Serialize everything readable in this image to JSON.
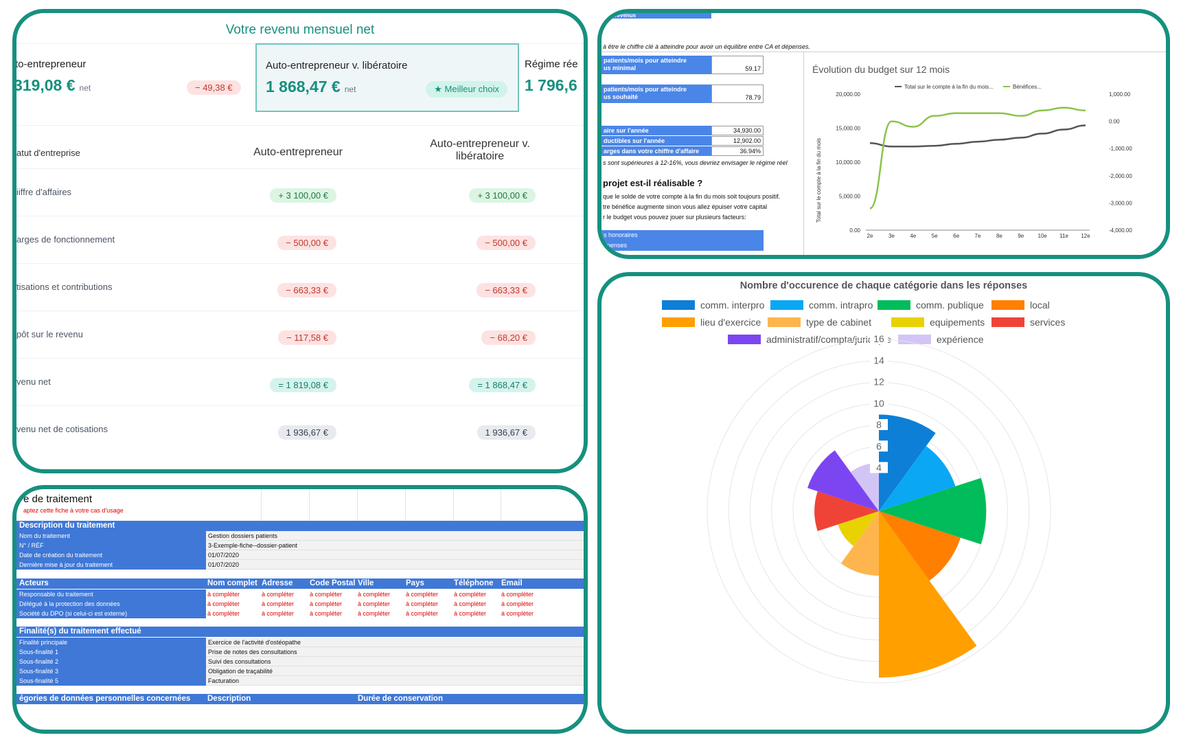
{
  "income": {
    "title": "Votre revenu mensuel net",
    "cards": [
      {
        "name": "to-entrepreneur",
        "amount": "319,08 €",
        "net": "net",
        "delta": "− 49,38 €"
      },
      {
        "name": "Auto-entrepreneur v. libératoire",
        "amount": "1 868,47 €",
        "net": "net",
        "badge": "★ Meilleur choix"
      },
      {
        "name": "Régime rée",
        "amount": "1 796,6"
      }
    ],
    "columns": [
      "atut d'entreprise",
      "Auto-entrepreneur",
      "Auto-entrepreneur v. libératoire"
    ],
    "rows": [
      {
        "label": "iiffre d'affaires",
        "v1": "+ 3 100,00 €",
        "v2": "+ 3 100,00 €"
      },
      {
        "label": "arges de fonctionnement",
        "v1": "− 500,00 €",
        "v2": "− 500,00 €"
      },
      {
        "label": "tisations et contributions",
        "v1": "− 663,33 €",
        "v2": "− 663,33 €"
      },
      {
        "label": "pôt sur le revenu",
        "v1": "− 117,58 €",
        "v2": "− 68,20 €"
      },
      {
        "label": "venu net",
        "v1": "= 1 819,08 €",
        "v2": "= 1 868,47 €"
      },
      {
        "label": "venu net de cotisations",
        "v1": "1 936,67 €",
        "v2": "1 936,67 €"
      }
    ]
  },
  "budget": {
    "top_cut": "t de revenus",
    "note": "à être le chiffre clé à atteindre pour avoir un équilibre entre CA et dépenses.",
    "cells": [
      {
        "label": "patients/mois pour atteindre",
        "label2": "us minimal",
        "value": "59.17"
      },
      {
        "label": "patients/mois pour atteindre",
        "label2": "us souhaité",
        "value": "78.79"
      }
    ],
    "stats": [
      {
        "label": "aire sur l'année",
        "value": "34,930.00"
      },
      {
        "label": "ductibles sur l'année",
        "value": "12,902.00"
      },
      {
        "label": "arges dans votre chiffre d'affaire",
        "value": "36.94%"
      }
    ],
    "warning": "s sont supérieures à 12-16%, vous devriez envisager le régime réel",
    "question": "projet est-il réalisable ?",
    "lines": [
      "que le solde de votre compte à la fin du mois soit toujours positif.",
      "tre bénéfice augmente sinon vous allez épuiser votre capital",
      "r le budget vous pouvez jouer sur plusieurs facteurs:"
    ],
    "blue_items": [
      "s honoraires",
      "épenses"
    ]
  },
  "chart_data": [
    {
      "type": "line",
      "title": "Évolution du budget sur 12 mois",
      "ylabel": "Total sur le compte à la fin du mois",
      "x": [
        "2e",
        "3e",
        "4e",
        "5e",
        "6e",
        "7e",
        "8e",
        "9e",
        "10e",
        "11e",
        "12e"
      ],
      "series": [
        {
          "name": "Total sur le compte à la fin du mois...",
          "axis": "left",
          "color": "#555555",
          "values": [
            12800,
            12300,
            12300,
            12400,
            12700,
            13000,
            13300,
            13600,
            14200,
            14800,
            15400
          ]
        },
        {
          "name": "Bénéfices...",
          "axis": "right",
          "color": "#8bc34a",
          "values": [
            -3200,
            0,
            -200,
            200,
            300,
            300,
            300,
            200,
            400,
            500,
            400
          ]
        }
      ],
      "ylim_left": [
        0,
        20000
      ],
      "ylim_right": [
        -4000,
        1000
      ],
      "yticks_left": [
        "20,000.00",
        "15,000.00",
        "10,000.00",
        "5,000.00",
        "0.00"
      ],
      "yticks_right": [
        "1,000.00",
        "0.00",
        "-1,000.00",
        "-2,000.00",
        "-3,000.00",
        "-4,000.00"
      ],
      "grid": false,
      "legend": "top"
    },
    {
      "type": "polar-area",
      "title": "Nombre d'occurence de chaque catégorie dans les réponses",
      "categories": [
        "comm. interpro",
        "comm. intrapro",
        "comm. publique",
        "local",
        "lieu d'exercice",
        "type de cabinet",
        "equipements",
        "services",
        "administratif/compta/juridique",
        "expérience"
      ],
      "values": [
        9,
        7.5,
        10,
        8,
        15.5,
        6,
        4,
        6,
        7,
        4.5
      ],
      "colors": [
        "#0e7fd6",
        "#0aa7f5",
        "#00bc5a",
        "#ff7f00",
        "#ff9f00",
        "#ffb54d",
        "#e8d200",
        "#ef4338",
        "#7c45f2",
        "#d3c4f6"
      ],
      "ylim": [
        0,
        16
      ],
      "ticks": [
        "16",
        "14",
        "12",
        "10",
        "8",
        "6",
        "4"
      ],
      "legend": "top"
    }
  ],
  "gdpr": {
    "title": "e de traitement",
    "subtitle": "aptez cette fiche à votre cas d'usage",
    "section1": "Description  du traitement",
    "desc_rows": [
      {
        "label": "Nom du traitement",
        "value": "Gestion dossiers patients"
      },
      {
        "label": "N° / RÉF",
        "value": "3-Exemple-fiche--dossier-patient"
      },
      {
        "label": "Date de création du traitement",
        "value": "01/07/2020"
      },
      {
        "label": "Dernière mise à jour du traitement",
        "value": "01/07/2020"
      }
    ],
    "actors_head": [
      "Acteurs",
      "Nom complet",
      "Adresse",
      "Code Postal",
      "Ville",
      "Pays",
      "Téléphone",
      "Email"
    ],
    "actors": [
      "Responsable du traitement",
      "Délégué à la protection des données",
      "Société du DPO (si celui-ci est externe)"
    ],
    "placeholder": "à compléter",
    "section2": "Finalité(s) du traitement effectué",
    "final_rows": [
      {
        "label": "Finalité principale",
        "value": "Exercice de l'activité d'ostéopathe"
      },
      {
        "label": "Sous-finalité 1",
        "value": "Prise de notes des consultations"
      },
      {
        "label": "Sous-finalité 2",
        "value": "Suivi des consultations"
      },
      {
        "label": "Sous-finalité 3",
        "value": "Obligation de traçabilité"
      },
      {
        "label": "Sous-finalité 5",
        "value": "Facturation"
      }
    ],
    "bottom_head": [
      "égories de données personnelles concernées",
      "Description",
      "Durée de conservation"
    ]
  }
}
